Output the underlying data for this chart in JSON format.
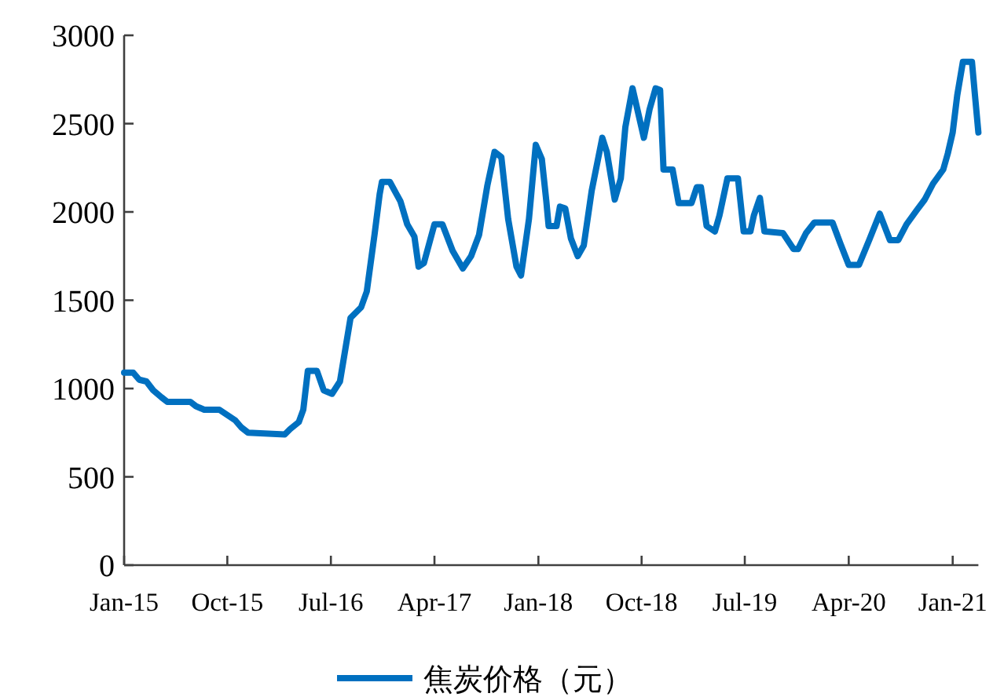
{
  "chart_data": {
    "type": "line",
    "legend": "bottom",
    "grid": false,
    "marker": "none",
    "line_style": "solid",
    "xlim": [
      "2015-01-01",
      "2021-03-10"
    ],
    "xticks": [
      {
        "value": "2015-01",
        "label": "Jan-15"
      },
      {
        "value": "2015-10",
        "label": "Oct-15"
      },
      {
        "value": "2016-07",
        "label": "Jul-16"
      },
      {
        "value": "2017-04",
        "label": "Apr-17"
      },
      {
        "value": "2018-01",
        "label": "Jan-18"
      },
      {
        "value": "2018-10",
        "label": "Oct-18"
      },
      {
        "value": "2019-07",
        "label": "Jul-19"
      },
      {
        "value": "2020-04",
        "label": "Apr-20"
      },
      {
        "value": "2021-01",
        "label": "Jan-21"
      }
    ],
    "ylim": [
      0,
      3000
    ],
    "yticks": [
      0,
      500,
      1000,
      1500,
      2000,
      2500,
      3000
    ],
    "x": [
      "2015-01-01",
      "2015-01-25",
      "2015-02-10",
      "2015-03-01",
      "2015-03-19",
      "2015-04-10",
      "2015-04-25",
      "2015-06-25",
      "2015-07-10",
      "2015-08-01",
      "2015-09-10",
      "2015-10-01",
      "2015-10-22",
      "2015-11-07",
      "2015-11-25",
      "2016-03-01",
      "2016-03-15",
      "2016-04-07",
      "2016-04-19",
      "2016-05-01",
      "2016-05-25",
      "2016-06-12",
      "2016-07-04",
      "2016-07-25",
      "2016-08-22",
      "2016-09-19",
      "2016-10-04",
      "2016-10-25",
      "2016-11-07",
      "2016-11-13",
      "2016-12-04",
      "2017-01-01",
      "2017-01-19",
      "2017-02-07",
      "2017-02-18",
      "2017-03-04",
      "2017-04-01",
      "2017-04-22",
      "2017-05-19",
      "2017-06-15",
      "2017-07-07",
      "2017-07-28",
      "2017-08-19",
      "2017-09-07",
      "2017-09-25",
      "2017-10-13",
      "2017-11-04",
      "2017-11-16",
      "2017-12-07",
      "2017-12-25",
      "2018-01-10",
      "2018-01-22",
      "2018-01-28",
      "2018-02-18",
      "2018-02-27",
      "2018-03-13",
      "2018-03-28",
      "2018-04-15",
      "2018-05-01",
      "2018-05-22",
      "2018-06-19",
      "2018-07-01",
      "2018-07-22",
      "2018-08-07",
      "2018-08-19",
      "2018-09-07",
      "2018-10-07",
      "2018-10-22",
      "2018-11-07",
      "2018-11-19",
      "2018-11-28",
      "2018-12-22",
      "2019-01-07",
      "2019-02-10",
      "2019-02-24",
      "2019-03-07",
      "2019-03-22",
      "2019-04-13",
      "2019-04-25",
      "2019-05-16",
      "2019-06-13",
      "2019-06-28",
      "2019-07-16",
      "2019-07-25",
      "2019-08-10",
      "2019-08-22",
      "2019-10-10",
      "2019-11-07",
      "2019-11-19",
      "2019-12-10",
      "2020-01-01",
      "2020-02-18",
      "2020-03-10",
      "2020-04-01",
      "2020-04-28",
      "2020-05-25",
      "2020-06-22",
      "2020-07-19",
      "2020-08-10",
      "2020-09-01",
      "2020-09-28",
      "2020-10-19",
      "2020-11-10",
      "2020-12-07",
      "2020-12-19",
      "2021-01-01",
      "2021-01-13",
      "2021-01-28",
      "2021-02-21",
      "2021-03-01",
      "2021-03-10"
    ],
    "series": [
      {
        "name": "焦炭价格（元）",
        "color": "#0070c0",
        "values": [
          1090,
          1090,
          1050,
          1040,
          990,
          950,
          925,
          925,
          900,
          880,
          880,
          850,
          820,
          780,
          750,
          740,
          770,
          810,
          880,
          1100,
          1100,
          990,
          970,
          1040,
          1400,
          1460,
          1550,
          1880,
          2100,
          2170,
          2170,
          2060,
          1930,
          1860,
          1690,
          1710,
          1930,
          1930,
          1780,
          1680,
          1750,
          1870,
          2150,
          2340,
          2310,
          1960,
          1690,
          1640,
          1960,
          2380,
          2300,
          2060,
          1920,
          1920,
          2030,
          2020,
          1850,
          1750,
          1810,
          2120,
          2420,
          2340,
          2070,
          2190,
          2480,
          2700,
          2420,
          2580,
          2700,
          2690,
          2240,
          2240,
          2050,
          2050,
          2140,
          2140,
          1920,
          1890,
          1980,
          2190,
          2190,
          1890,
          1890,
          1980,
          2080,
          1890,
          1880,
          1790,
          1790,
          1880,
          1940,
          1940,
          1820,
          1700,
          1700,
          1840,
          1990,
          1840,
          1840,
          1930,
          2010,
          2070,
          2160,
          2240,
          2330,
          2450,
          2660,
          2850,
          2850,
          2660,
          2450
        ]
      }
    ]
  }
}
